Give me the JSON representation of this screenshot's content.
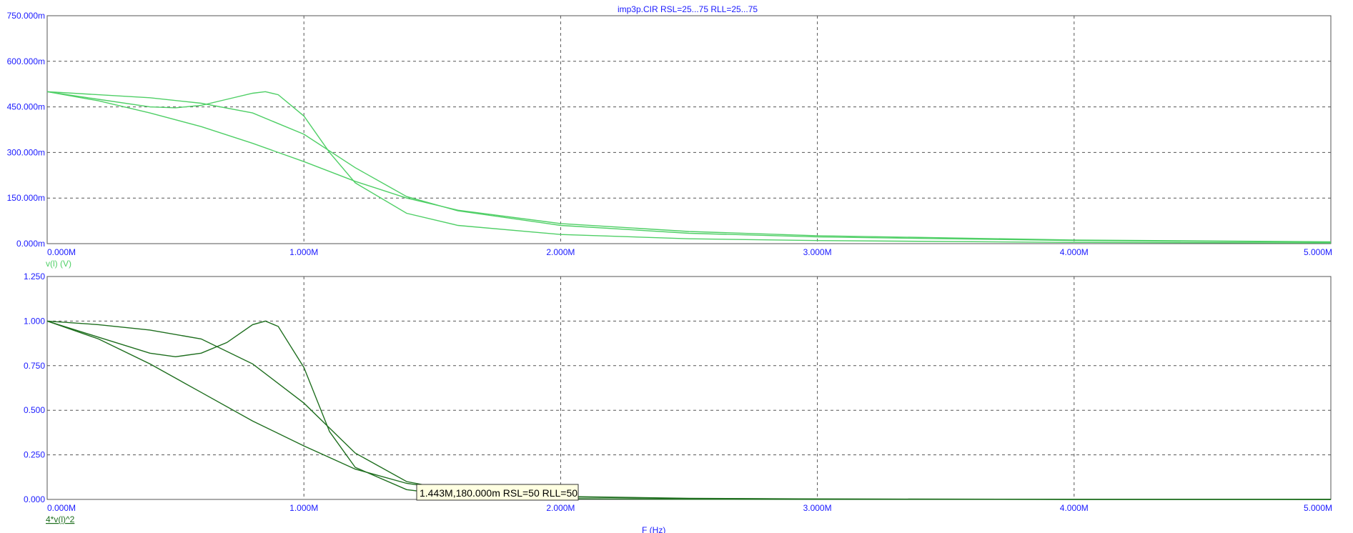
{
  "title": "imp3p.CIR RSL=25...75 RLL=25...75",
  "xlabel": "F (Hz)",
  "tooltip": "1.443M,180.000m RSL=50 RLL=50",
  "colors": {
    "top_trace": "#4fcf66",
    "bottom_trace": "#1e6e1e",
    "tick_text": "#1a1aff",
    "tooltip_bg": "#ffffe1"
  },
  "chart_data": [
    {
      "type": "line",
      "trace_label": "v(l) (V)",
      "xlim": [
        0,
        5000000
      ],
      "ylim": [
        0,
        0.75
      ],
      "x_tick_labels": [
        "0.000M",
        "1.000M",
        "2.000M",
        "3.000M",
        "4.000M",
        "5.000M"
      ],
      "y_tick_labels": [
        "0.000m",
        "150.000m",
        "300.000m",
        "450.000m",
        "600.000m",
        "750.000m"
      ],
      "x_ticks": [
        0,
        1000000,
        2000000,
        3000000,
        4000000,
        5000000
      ],
      "y_ticks": [
        0,
        0.15,
        0.3,
        0.45,
        0.6,
        0.75
      ],
      "grid": true,
      "series": [
        {
          "x": [
            0,
            200000,
            400000,
            600000,
            800000,
            1000000,
            1200000,
            1400000,
            1600000,
            2000000,
            2500000,
            3000000,
            4000000,
            5000000
          ],
          "y": [
            0.5,
            0.49,
            0.48,
            0.462,
            0.43,
            0.36,
            0.25,
            0.155,
            0.108,
            0.06,
            0.034,
            0.022,
            0.01,
            0.005
          ]
        },
        {
          "x": [
            0,
            200000,
            400000,
            600000,
            800000,
            1000000,
            1200000,
            1400000,
            1600000,
            2000000,
            2500000,
            3000000,
            4000000,
            5000000
          ],
          "y": [
            0.5,
            0.47,
            0.43,
            0.385,
            0.33,
            0.27,
            0.205,
            0.15,
            0.11,
            0.066,
            0.04,
            0.026,
            0.012,
            0.006
          ]
        },
        {
          "x": [
            0,
            200000,
            400000,
            500000,
            600000,
            700000,
            800000,
            850000,
            900000,
            1000000,
            1100000,
            1200000,
            1400000,
            1600000,
            2000000,
            2500000,
            3000000,
            4000000,
            5000000
          ],
          "y": [
            0.5,
            0.475,
            0.45,
            0.447,
            0.455,
            0.475,
            0.495,
            0.5,
            0.49,
            0.42,
            0.3,
            0.2,
            0.1,
            0.06,
            0.03,
            0.016,
            0.01,
            0.004,
            0.002
          ]
        }
      ]
    },
    {
      "type": "line",
      "trace_label": "4*v(l)^2",
      "xlim": [
        0,
        5000000
      ],
      "ylim": [
        0,
        1.25
      ],
      "x_tick_labels": [
        "0.000M",
        "1.000M",
        "2.000M",
        "3.000M",
        "4.000M",
        "5.000M"
      ],
      "y_tick_labels": [
        "0.000",
        "0.250",
        "0.500",
        "0.750",
        "1.000",
        "1.250"
      ],
      "x_ticks": [
        0,
        1000000,
        2000000,
        3000000,
        4000000,
        5000000
      ],
      "y_ticks": [
        0,
        0.25,
        0.5,
        0.75,
        1.0,
        1.25
      ],
      "grid": true,
      "series": [
        {
          "x": [
            0,
            200000,
            400000,
            600000,
            800000,
            1000000,
            1200000,
            1400000,
            1600000,
            2000000,
            2500000,
            3000000,
            4000000,
            5000000
          ],
          "y": [
            1.0,
            0.98,
            0.95,
            0.9,
            0.76,
            0.54,
            0.26,
            0.1,
            0.045,
            0.015,
            0.005,
            0.002,
            0.0005,
            0.0001
          ]
        },
        {
          "x": [
            0,
            200000,
            400000,
            600000,
            800000,
            1000000,
            1200000,
            1400000,
            1600000,
            2000000,
            2500000,
            3000000,
            4000000,
            5000000
          ],
          "y": [
            1.0,
            0.9,
            0.76,
            0.6,
            0.44,
            0.3,
            0.17,
            0.09,
            0.048,
            0.017,
            0.006,
            0.003,
            0.0006,
            0.0001
          ]
        },
        {
          "x": [
            0,
            200000,
            400000,
            500000,
            600000,
            700000,
            800000,
            850000,
            900000,
            1000000,
            1100000,
            1200000,
            1400000,
            1600000,
            2000000,
            2500000,
            3000000,
            4000000,
            5000000
          ],
          "y": [
            1.0,
            0.91,
            0.82,
            0.8,
            0.82,
            0.88,
            0.98,
            1.0,
            0.97,
            0.74,
            0.38,
            0.18,
            0.055,
            0.02,
            0.004,
            0.001,
            0.0004,
            0.0001,
            0.0
          ]
        }
      ]
    }
  ]
}
